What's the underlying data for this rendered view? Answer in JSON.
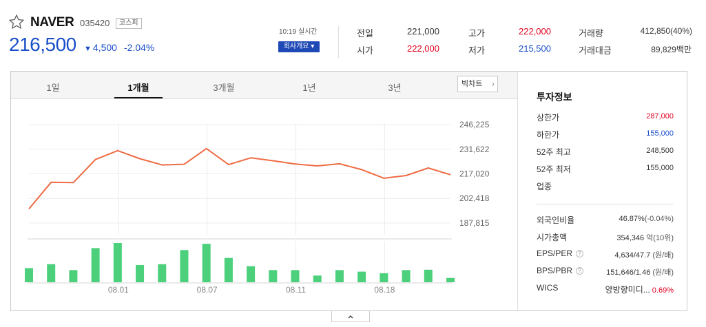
{
  "header": {
    "name": "NAVER",
    "code": "035420",
    "market": "코스피",
    "price": "216,500",
    "change_arrow": "▼",
    "change": "4,500",
    "rate": "-2.04%",
    "time": "10:19",
    "realtime": "실시간",
    "company_button": "회사개요 ▾"
  },
  "quote": {
    "prev_label": "전일",
    "prev_value": "221,000",
    "open_label": "시가",
    "open_value": "222,000",
    "high_label": "고가",
    "high_value": "222,000",
    "low_label": "저가",
    "low_value": "215,500",
    "volume_label": "거래량",
    "volume_value": "412,850(40%)",
    "amount_label": "거래대금",
    "amount_value": "89,829백만"
  },
  "tabs": [
    "1일",
    "1개월",
    "3개월",
    "1년",
    "3년"
  ],
  "active_tab": "1개월",
  "big_chart_button": "빅차트",
  "investment": {
    "title": "투자정보",
    "upper_label": "상한가",
    "upper_value": "287,000",
    "lower_label": "하한가",
    "lower_value": "155,000",
    "w52_high_label": "52주 최고",
    "w52_high_value": "248,500",
    "w52_low_label": "52주 최저",
    "w52_low_value": "155,000",
    "sector_label": "업종",
    "foreign_label": "외국인비율",
    "foreign_value": "46.87%",
    "foreign_change": "(-0.04%)",
    "mcap_label": "시가총액",
    "mcap_value": "354,346",
    "mcap_unit": "억(10위)",
    "eps_label": "EPS/PER",
    "eps_value": "4,634/47.7",
    "eps_unit": "(원/배)",
    "bps_label": "BPS/PBR",
    "bps_value": "151,646/1.46",
    "bps_unit": "(원/배)",
    "wics_label": "WICS",
    "wics_value": "양방향미디...",
    "wics_rate": "0.69%",
    "help_glyph": "?"
  },
  "colors": {
    "up": "#e0001e",
    "down": "#1a4fc9",
    "line": "#ef6b43",
    "volume": "#4cd07c"
  },
  "chart_data": {
    "type": "line",
    "y_ticks": [
      246225,
      231622,
      217020,
      202418,
      187815
    ],
    "y_tick_labels": [
      "246,225",
      "231,622",
      "217,020",
      "202,418",
      "187,815"
    ],
    "ylim": [
      187815,
      246225
    ],
    "x_tick_labels": [
      "08.01",
      "08.07",
      "08.11",
      "08.18"
    ],
    "prices": [
      196200,
      212000,
      211800,
      225500,
      230800,
      226000,
      222300,
      222700,
      232000,
      222500,
      226500,
      224800,
      222800,
      221700,
      223000,
      219500,
      214400,
      216000,
      220500,
      216500
    ],
    "volumes": [
      0.36,
      0.46,
      0.31,
      0.87,
      1.0,
      0.44,
      0.46,
      0.82,
      0.98,
      0.62,
      0.41,
      0.31,
      0.31,
      0.17,
      0.31,
      0.27,
      0.23,
      0.31,
      0.32,
      0.11
    ],
    "grid": true
  }
}
